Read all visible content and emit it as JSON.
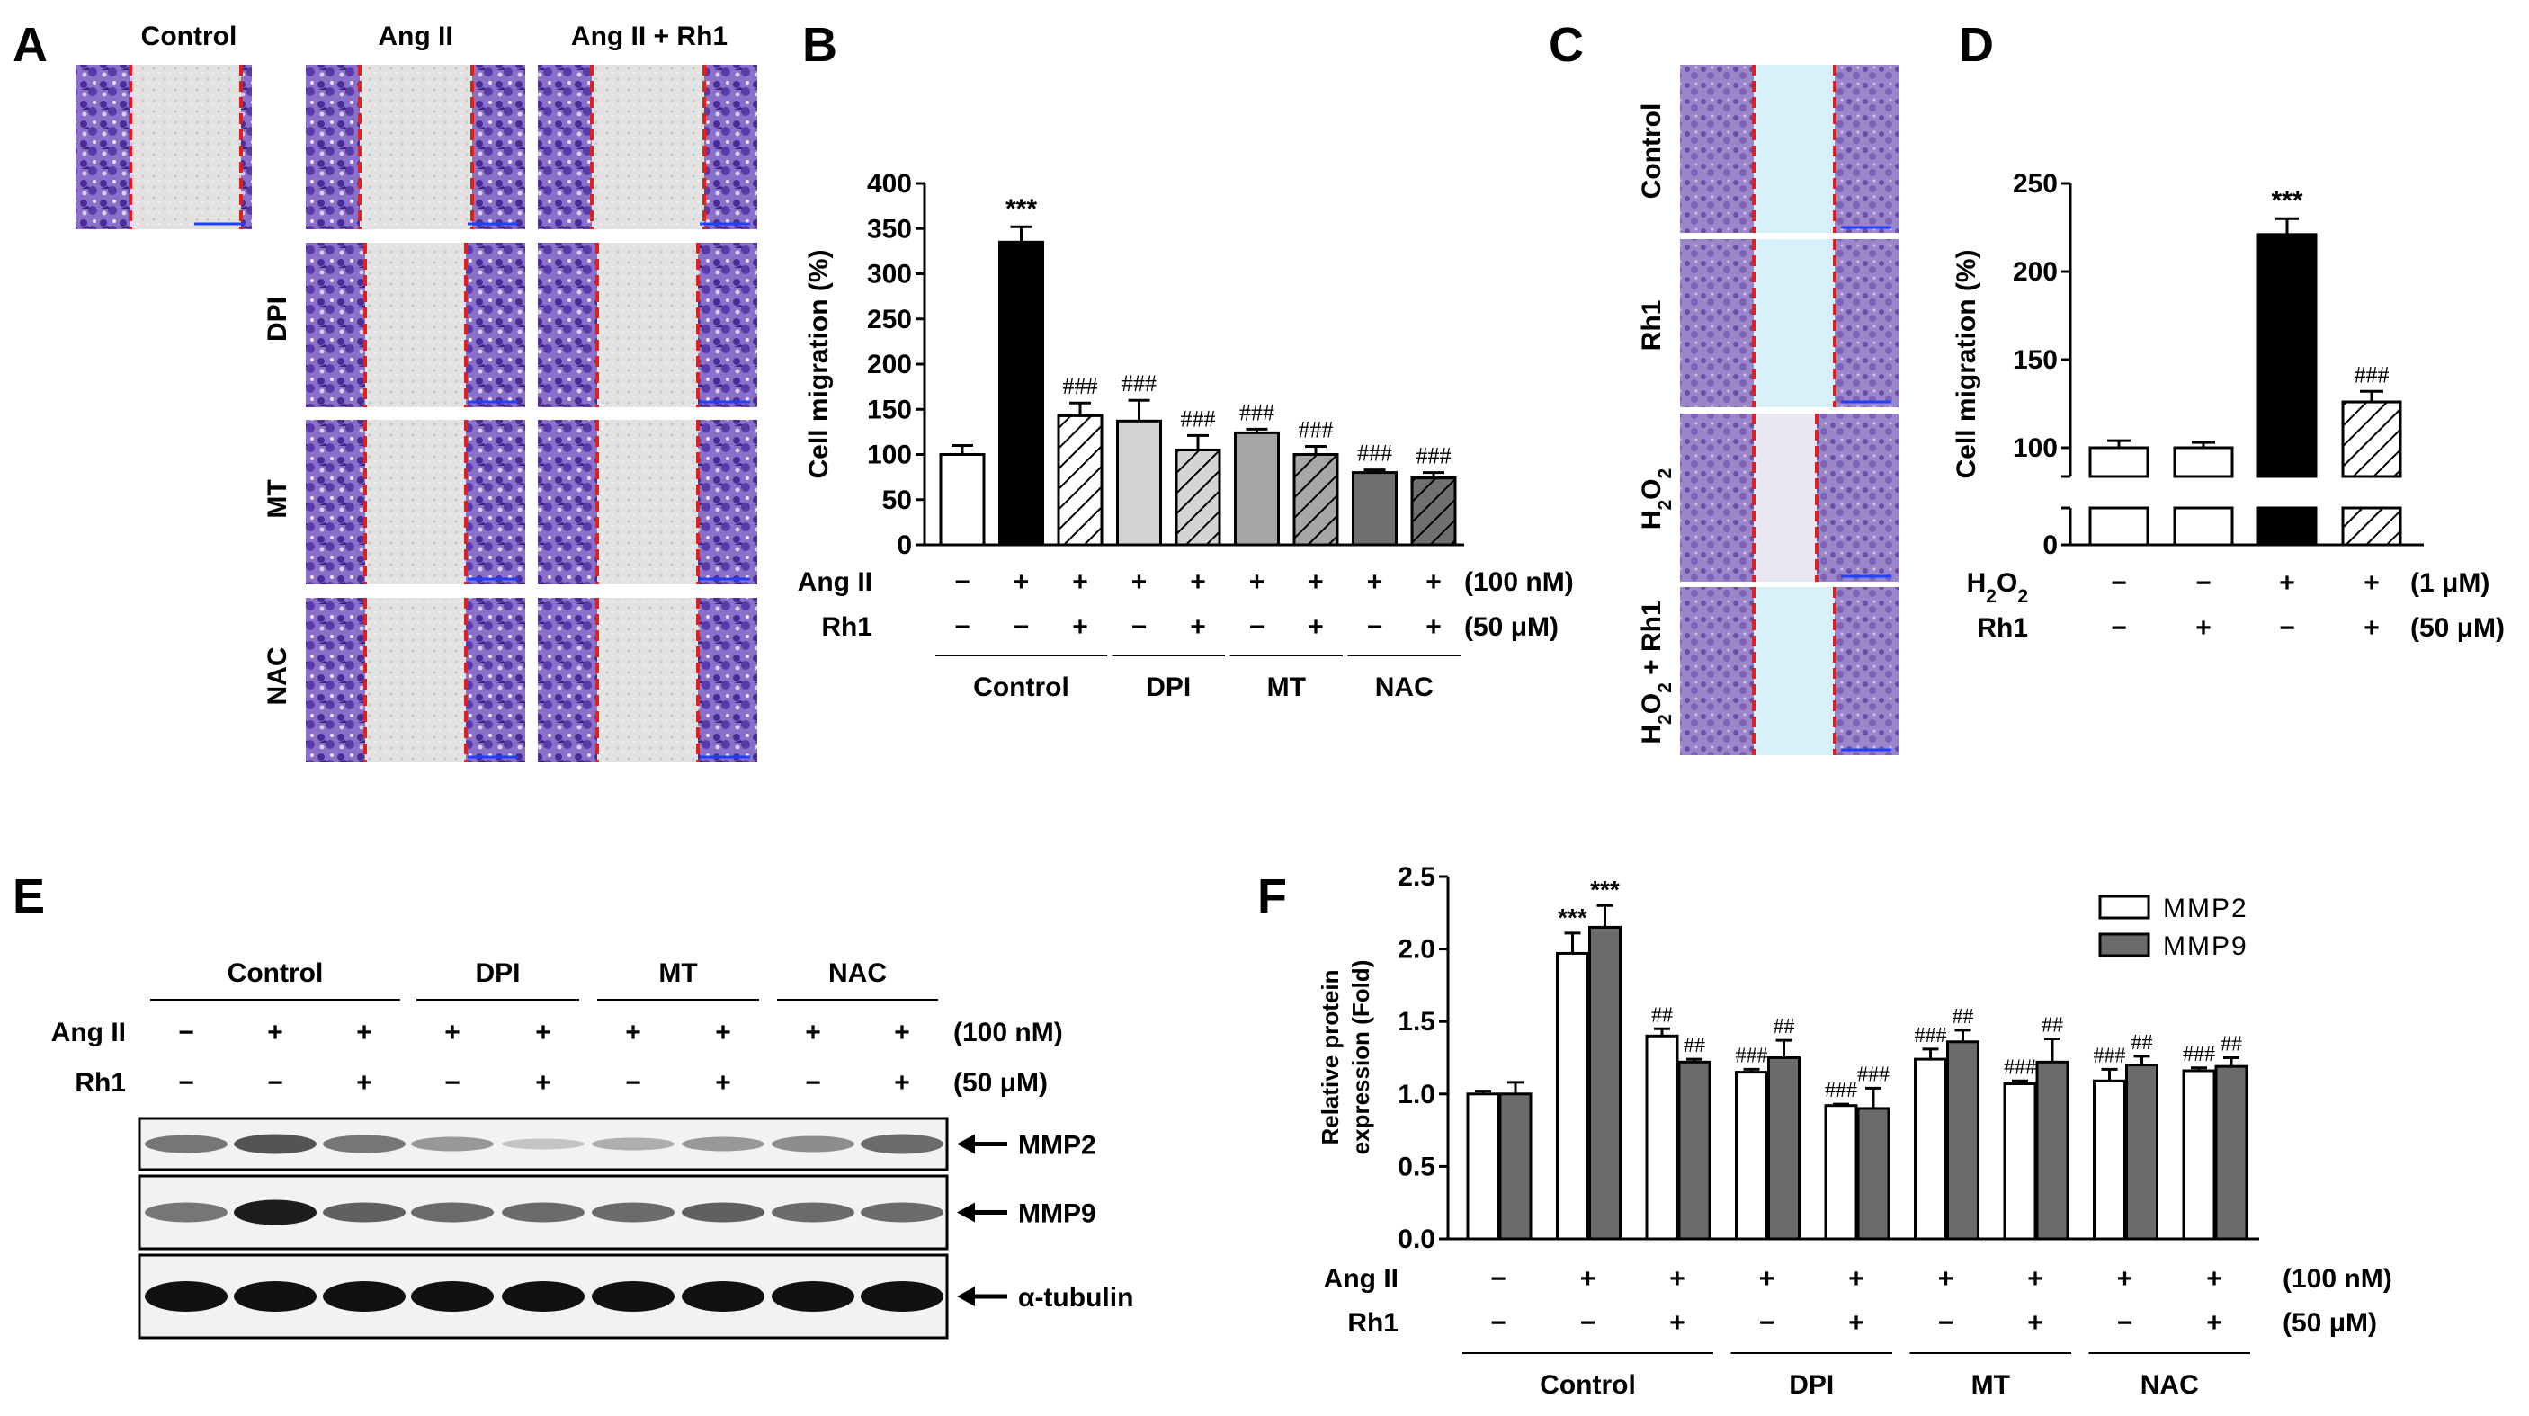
{
  "panel_labels": {
    "A": "A",
    "B": "B",
    "C": "C",
    "D": "D",
    "E": "E",
    "F": "F"
  },
  "panel_A": {
    "col_headers": [
      "Control",
      "Ang II",
      "Ang II + Rh1"
    ],
    "row_labels": [
      "DPI",
      "MT",
      "NAC"
    ]
  },
  "panel_C": {
    "row_labels": [
      "Control",
      "Rh1",
      "H2O2",
      "H2O2 + Rh1"
    ]
  },
  "panel_E": {
    "group_labels": [
      "Control",
      "DPI",
      "MT",
      "NAC"
    ],
    "row_titles": [
      "Ang II",
      "Rh1"
    ],
    "ang_signs": [
      "−",
      "+",
      "+",
      "+",
      "+",
      "+",
      "+",
      "+",
      "+"
    ],
    "rh1_signs": [
      "−",
      "−",
      "+",
      "−",
      "+",
      "−",
      "+",
      "−",
      "+"
    ],
    "ang_conc": "(100 nM)",
    "rh1_conc": "(50 μM)",
    "band_labels": [
      "MMP2",
      "MMP9",
      "α-tubulin"
    ]
  },
  "colors": {
    "black": "#000000",
    "light_gray": "#d4d4d4",
    "mid_gray": "#a6a6a6",
    "dark_gray": "#707070",
    "mmp9_gray": "#6b6b6b",
    "stain_purple": "#5b3ba8",
    "scratch_red": "#e02020",
    "scale_blue": "#2040ff",
    "gap_blue": "#d8f0fa"
  },
  "chart_data": [
    {
      "id": "B",
      "type": "bar",
      "ylabel": "Cell migration (%)",
      "ylim": [
        0,
        400
      ],
      "yticks": [
        0,
        50,
        100,
        150,
        200,
        250,
        300,
        350,
        400
      ],
      "values": [
        100,
        335,
        143,
        137,
        105,
        124,
        100,
        80,
        74
      ],
      "errors": [
        10,
        17,
        14,
        23,
        16,
        4,
        9,
        3,
        6
      ],
      "fills": [
        "white",
        "black",
        "white-hatch",
        "light_gray",
        "light_gray-hatch",
        "mid_gray",
        "mid_gray-hatch",
        "dark_gray",
        "dark_gray-hatch"
      ],
      "annotations": [
        "",
        "***",
        "###",
        "###",
        "###",
        "###",
        "###",
        "###",
        "###"
      ],
      "row_titles": [
        "Ang II",
        "Rh1"
      ],
      "ang_signs": [
        "−",
        "+",
        "+",
        "+",
        "+",
        "+",
        "+",
        "+",
        "+"
      ],
      "rh1_signs": [
        "−",
        "−",
        "+",
        "−",
        "+",
        "−",
        "+",
        "−",
        "+"
      ],
      "ang_conc": "(100 nM)",
      "rh1_conc": "(50 μM)",
      "groups": [
        "Control",
        "DPI",
        "MT",
        "NAC"
      ]
    },
    {
      "id": "D",
      "type": "bar",
      "ylabel": "Cell migration (%)",
      "axis_break": true,
      "yticks_upper": [
        100,
        150,
        200,
        250
      ],
      "yticks_lower": [
        0
      ],
      "values": [
        100,
        100,
        221,
        126
      ],
      "errors": [
        4,
        3,
        9,
        6
      ],
      "fills": [
        "white",
        "white",
        "black",
        "white-hatch"
      ],
      "annotations": [
        "",
        "",
        "***",
        "###"
      ],
      "row_titles": [
        "H2O2",
        "Rh1"
      ],
      "h2o2_signs": [
        "−",
        "−",
        "+",
        "+"
      ],
      "rh1_signs": [
        "−",
        "+",
        "−",
        "+"
      ],
      "h2o2_conc": "(1 μM)",
      "rh1_conc": "(50 μM)"
    },
    {
      "id": "F",
      "type": "bar",
      "ylabel_lines": [
        "Relative protein",
        "expression (Fold)"
      ],
      "ylim": [
        0,
        2.5
      ],
      "yticks": [
        "0.0",
        "0.5",
        "1.0",
        "1.5",
        "2.0",
        "2.5"
      ],
      "series": [
        {
          "name": "MMP2",
          "values": [
            1.0,
            1.97,
            1.4,
            1.15,
            0.92,
            1.24,
            1.07,
            1.09,
            1.16
          ],
          "errors": [
            0.02,
            0.14,
            0.05,
            0.02,
            0.01,
            0.07,
            0.02,
            0.08,
            0.02
          ],
          "annotations": [
            "",
            "***",
            "##",
            "###",
            "###",
            "###",
            "###",
            "###",
            "###"
          ]
        },
        {
          "name": "MMP9",
          "values": [
            1.0,
            2.15,
            1.22,
            1.25,
            0.9,
            1.36,
            1.22,
            1.2,
            1.19
          ],
          "errors": [
            0.08,
            0.15,
            0.02,
            0.12,
            0.14,
            0.08,
            0.16,
            0.06,
            0.06
          ],
          "annotations": [
            "",
            "***",
            "##",
            "##",
            "###",
            "##",
            "##",
            "##",
            "##"
          ]
        }
      ],
      "legend": [
        "MMP2",
        "MMP9"
      ],
      "row_titles": [
        "Ang II",
        "Rh1"
      ],
      "ang_signs": [
        "−",
        "+",
        "+",
        "+",
        "+",
        "+",
        "+",
        "+",
        "+"
      ],
      "rh1_signs": [
        "−",
        "−",
        "+",
        "−",
        "+",
        "−",
        "+",
        "−",
        "+"
      ],
      "ang_conc": "(100 nM)",
      "rh1_conc": "(50 μM)",
      "groups": [
        "Control",
        "DPI",
        "MT",
        "NAC"
      ]
    }
  ]
}
